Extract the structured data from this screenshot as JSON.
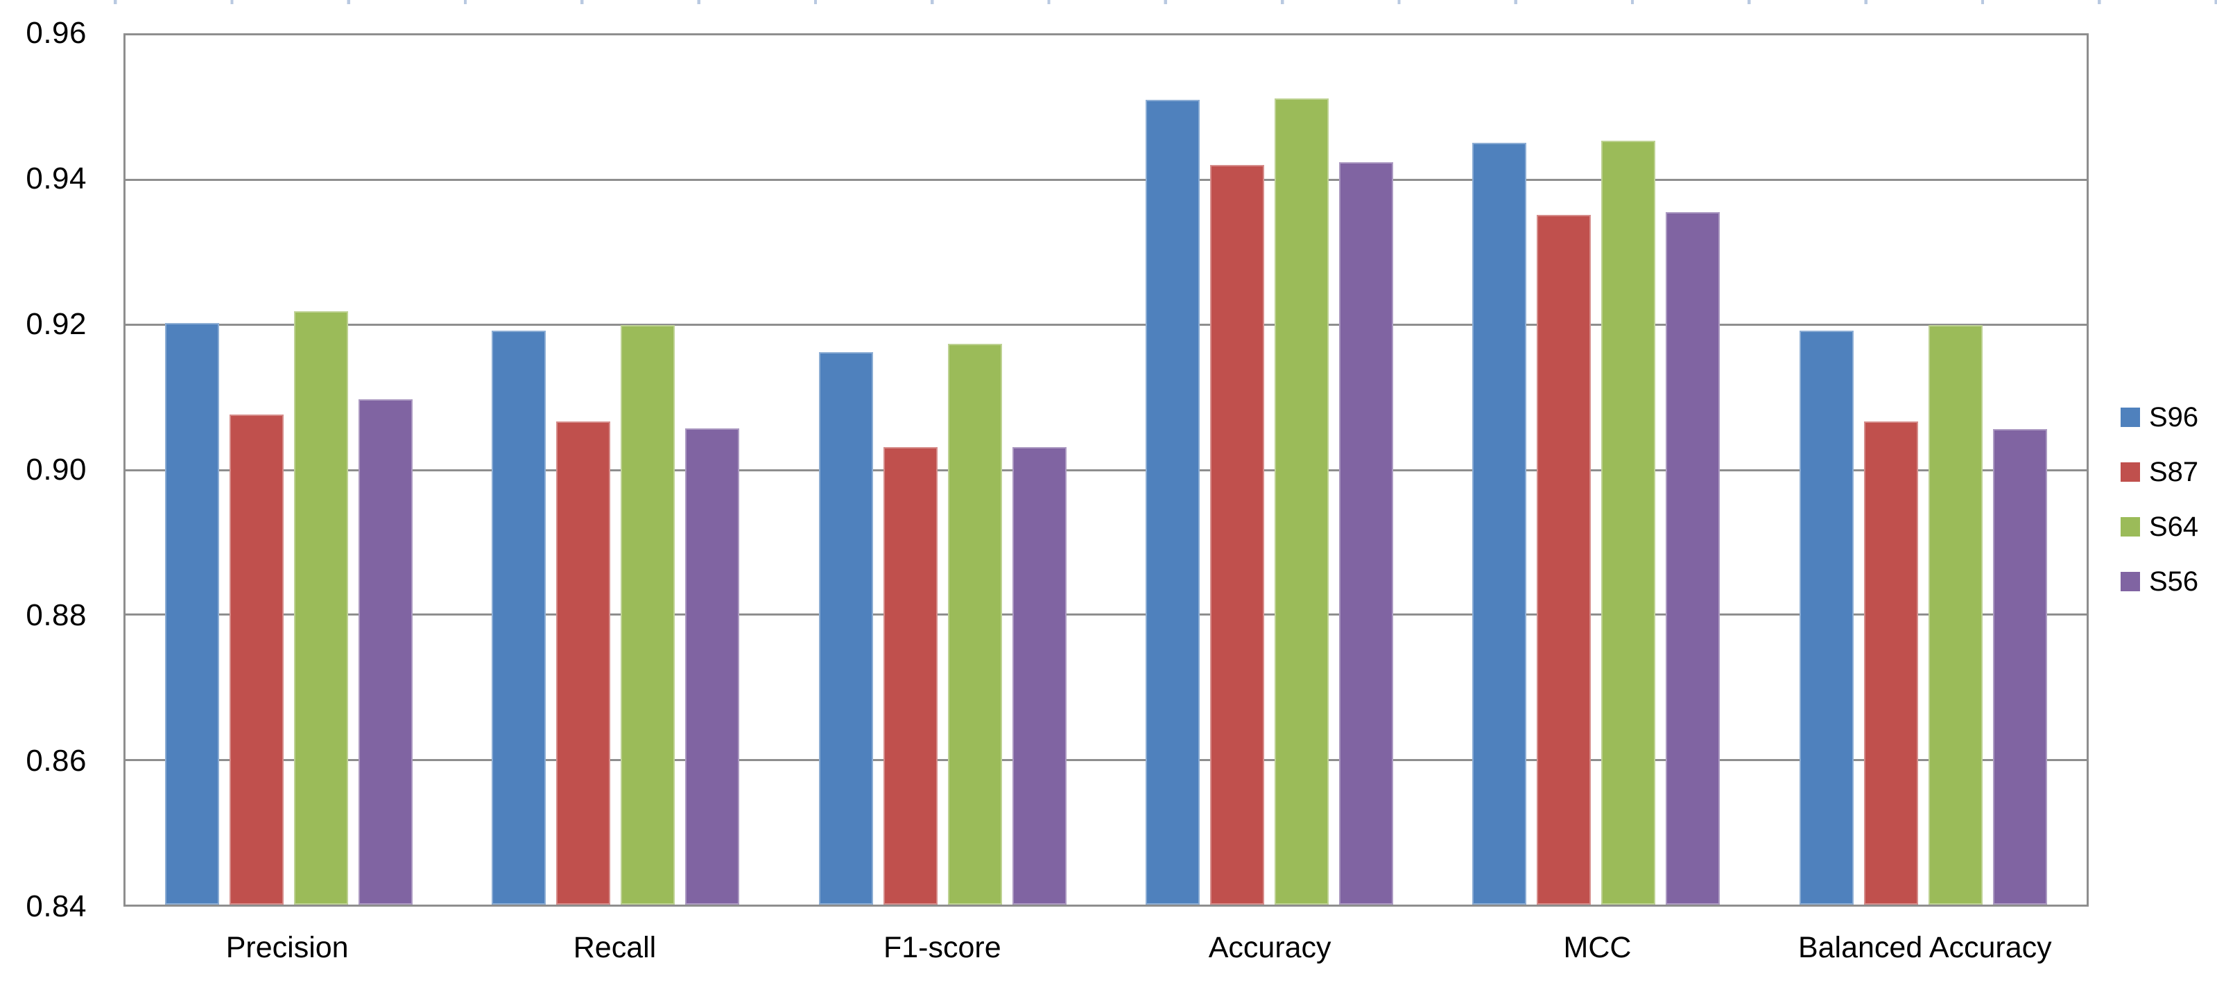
{
  "chart_data": {
    "type": "bar",
    "title": "",
    "categories": [
      "Precision",
      "Recall",
      "F1-score",
      "Accuracy",
      "MCC",
      "Balanced Accuracy"
    ],
    "series": [
      {
        "name": "S96",
        "color": "#4F81BD",
        "values": [
          0.9203,
          0.9192,
          0.9163,
          0.9511,
          0.9452,
          0.9192
        ]
      },
      {
        "name": "S87",
        "color": "#C0504D",
        "values": [
          0.9077,
          0.9067,
          0.9032,
          0.9421,
          0.9352,
          0.9067
        ]
      },
      {
        "name": "S64",
        "color": "#9BBB59",
        "values": [
          0.9219,
          0.92,
          0.9174,
          0.9513,
          0.9455,
          0.92
        ]
      },
      {
        "name": "S56",
        "color": "#8064A2",
        "values": [
          0.9098,
          0.9057,
          0.9032,
          0.9425,
          0.9356,
          0.9056
        ]
      }
    ],
    "ylim": [
      0.84,
      0.96
    ],
    "yticks": [
      "0.96",
      "0.94",
      "0.92",
      "0.90",
      "0.88",
      "0.86",
      "0.84"
    ],
    "ytick_step": 0.02,
    "grid": true,
    "legend_position": "right",
    "xlabel": "",
    "ylabel": ""
  },
  "style": {
    "background": "#FFFFFF",
    "grid_color": "#8E8E8E",
    "text_color": "#000000",
    "top_tick_color": "#B9C9E1"
  }
}
